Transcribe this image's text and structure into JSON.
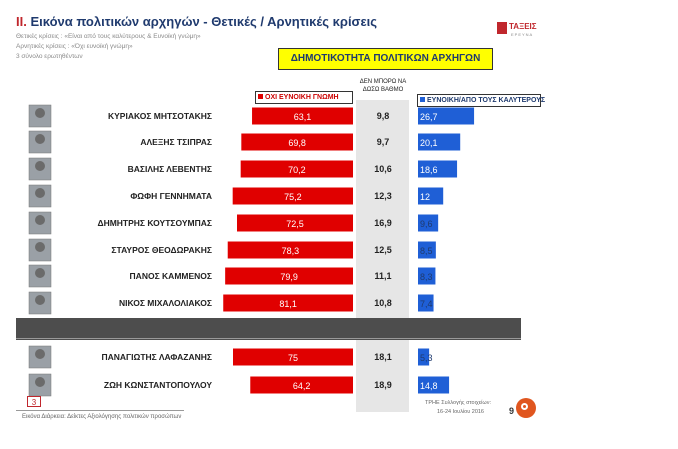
{
  "header": {
    "section_number": "II.",
    "title": "Εικόνα πολιτικών αρχηγών  - Θετικές / Αρνητικές κρίσεις",
    "subtitle_lines": [
      "Θετικές κρίσεις : «Είναι από τους καλύτερους & Ευνοϊκή γνώμη»",
      "Αρνητικές κρίσεις : «Όχι ευνοϊκή γνώμη»",
      "3 σύνολο ερωτηθέντων"
    ],
    "logo_text": "ΤΑΞΕΙΣ",
    "logo_sub": "ΕΡΕΥΝΑ"
  },
  "chart_data": {
    "type": "bar",
    "title": "ΔΗΜΟΤΙΚΟΤΗΤΑ ΠΟΛΙΤΙΚΩΝ ΑΡΧΗΓΩΝ",
    "legend": {
      "negative": "ΟΧΙ ΕΥΝΟΙΚΗ ΓΝΩΜΗ",
      "middle": "ΔΕΝ ΜΠΟΡΩ ΝΑ ΔΩΣΩ ΒΑΘΜΟ",
      "positive": "ΕΥΝΟΙΚΗ/ΑΠΟ ΤΟΥΣ ΚΑΛΥΤΕΡΟΥΣ"
    },
    "categories": [
      "ΚΥΡΙΑΚΟΣ ΜΗΤΣΟΤΑΚΗΣ",
      "ΑΛΕΞΗΣ ΤΣΙΠΡΑΣ",
      "ΒΑΣΙΛΗΣ ΛΕΒΕΝΤΗΣ",
      "ΦΩΦΗ ΓΕΝΝΗΜΑΤΑ",
      "ΔΗΜΗΤΡΗΣ ΚΟΥΤΣΟΥΜΠΑΣ",
      "ΣΤΑΥΡΟΣ ΘΕΟΔΩΡΑΚΗΣ",
      "ΠΑΝΟΣ ΚΑΜΜΕΝΟΣ",
      "ΝΙΚΟΣ ΜΙΧΑΛΟΛΙΑΚΟΣ",
      "ΠΑΝΑΓΙΩΤΗΣ ΛΑΦΑΖΑΝΗΣ",
      "ΖΩΗ ΚΩΝΣΤΑΝΤΟΠΟΥΛΟΥ"
    ],
    "series": [
      {
        "key": "negative",
        "values": [
          63.1,
          69.8,
          70.2,
          75.2,
          72.5,
          78.3,
          79.9,
          81.1,
          75,
          64.2
        ],
        "labels": [
          "63,1",
          "69,8",
          "70,2",
          "75,2",
          "72,5",
          "78,3",
          "79,9",
          "81,1",
          "75",
          "64,2"
        ]
      },
      {
        "key": "middle",
        "values": [
          9.8,
          9.7,
          10.6,
          12.3,
          16.9,
          12.5,
          11.1,
          10.8,
          18.1,
          18.9
        ],
        "labels": [
          "9,8",
          "9,7",
          "10,6",
          "12,3",
          "16,9",
          "12,5",
          "11,1",
          "10,8",
          "18,1",
          "18,9"
        ]
      },
      {
        "key": "positive",
        "values": [
          26.7,
          20.1,
          18.6,
          12,
          9.6,
          8.5,
          8.3,
          7.4,
          5.3,
          14.8
        ],
        "labels": [
          "26,7",
          "20,1",
          "18,6",
          "12",
          "9,6",
          "8,5",
          "8,3",
          "7,4",
          "5,3",
          "14,8"
        ]
      }
    ],
    "colors": {
      "negative": "#e00000",
      "middle": "#e6e6e6",
      "positive": "#1f5fd6",
      "divider": "#4d4d4d"
    }
  },
  "footer": {
    "page_badge": "3",
    "left_text": "Εικόνα Διάρκεια: Δείκτες Αξιολόγησης πολιτικών προσώπων",
    "right_line_1": "ΤΡΗΕ Συλλογής στοιχείων:",
    "right_line_2": "16-24 Ιουλίου 2016",
    "page_number": "9"
  }
}
